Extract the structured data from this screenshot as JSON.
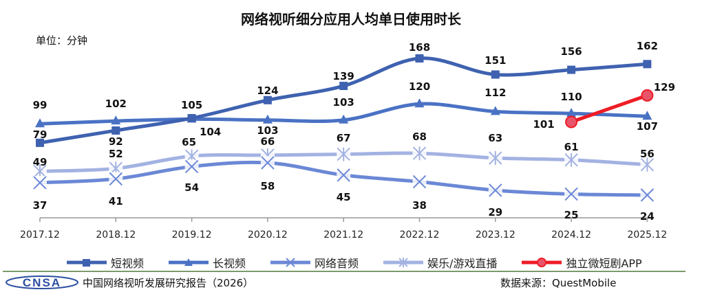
{
  "chart_data": {
    "type": "line",
    "title": "网络视听细分应用人均单日使用时长",
    "unit_label": "单位：分钟",
    "categories": [
      "2017.12",
      "2018.12",
      "2019.12",
      "2020.12",
      "2021.12",
      "2022.12",
      "2023.12",
      "2024.12",
      "2025.12"
    ],
    "ylim": [
      0,
      168
    ],
    "grid": false,
    "legend_position": "bottom",
    "series": [
      {
        "name": "短视频",
        "marker": "square",
        "color": "#3f62b0",
        "values": [
          79,
          92,
          105,
          124,
          139,
          168,
          151,
          156,
          162
        ],
        "label_pos": [
          "below",
          "below",
          "above",
          "above",
          "above",
          "above",
          "above",
          "above",
          "above"
        ]
      },
      {
        "name": "长视频",
        "marker": "triangle",
        "color": "#4a72c4",
        "values": [
          99,
          102,
          104,
          103,
          103,
          120,
          112,
          110,
          107
        ],
        "label_pos": [
          "above",
          "above",
          "below",
          "below",
          "above",
          "above",
          "above",
          "above",
          "below"
        ]
      },
      {
        "name": "网络音频",
        "marker": "x",
        "color": "#6b88d6",
        "values": [
          37,
          41,
          54,
          58,
          45,
          38,
          29,
          25,
          24
        ],
        "label_pos": [
          "below",
          "below",
          "below",
          "below",
          "below",
          "below",
          "below",
          "below",
          "below"
        ]
      },
      {
        "name": "娱乐/游戏直播",
        "marker": "star",
        "color": "#a3b2e2",
        "values": [
          49,
          52,
          65,
          66,
          67,
          68,
          63,
          61,
          56
        ],
        "label_pos": [
          "above",
          "above",
          "above",
          "above",
          "above",
          "above",
          "above",
          "above",
          "above"
        ]
      },
      {
        "name": "独立微短剧APP",
        "marker": "circle",
        "color": "#ee1c25",
        "values": [
          null,
          null,
          null,
          null,
          null,
          null,
          null,
          101,
          129
        ],
        "label_pos": [
          null,
          null,
          null,
          null,
          null,
          null,
          null,
          "left",
          "right"
        ]
      }
    ]
  },
  "footer": {
    "logo_text": "CNSA",
    "report": "中国网络视听发展研究报告（2026）",
    "source": "数据来源：QuestMobile"
  }
}
